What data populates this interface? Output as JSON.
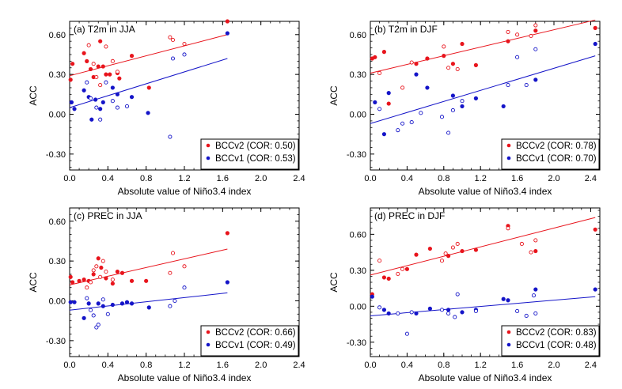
{
  "colors": {
    "bccv2": "#e8141c",
    "bccv1": "#1414c8"
  },
  "chart_data": [
    {
      "type": "scatter",
      "title": "(a) T2m in JJA",
      "xlabel": "Absolute value of Niño3.4 index",
      "ylabel": "ACC",
      "xlim": [
        0,
        2.4
      ],
      "ylim": [
        -0.42,
        0.7
      ],
      "xticks": [
        "0.0",
        "0.4",
        "0.8",
        "1.2",
        "1.6",
        "2.0",
        "2.4"
      ],
      "yticks": [
        "-0.30",
        "0.00",
        "0.30",
        "0.60"
      ],
      "grid": false,
      "legend_position": "bottom-right",
      "series": [
        {
          "name": "BCCv2 (COR: 0.50)",
          "color": "#e8141c",
          "fit": [
            [
              0,
              0.29
            ],
            [
              1.65,
              0.6
            ]
          ],
          "filled": [
            [
              0.01,
              0.26
            ],
            [
              0.03,
              0.38
            ],
            [
              0.15,
              0.46
            ],
            [
              0.18,
              0.4
            ],
            [
              0.22,
              0.34
            ],
            [
              0.25,
              0.28
            ],
            [
              0.3,
              0.36
            ],
            [
              0.32,
              0.55
            ],
            [
              0.35,
              0.36
            ],
            [
              0.38,
              0.3
            ],
            [
              0.42,
              0.3
            ],
            [
              0.5,
              0.31
            ],
            [
              0.52,
              0.27
            ],
            [
              0.65,
              0.44
            ],
            [
              0.83,
              0.2
            ],
            [
              1.65,
              0.7
            ]
          ],
          "hollow": [
            [
              0.2,
              0.52
            ],
            [
              0.25,
              0.38
            ],
            [
              0.28,
              0.28
            ],
            [
              0.32,
              0.22
            ],
            [
              0.38,
              0.51
            ],
            [
              0.45,
              0.4
            ],
            [
              0.5,
              0.32
            ],
            [
              1.05,
              0.58
            ],
            [
              1.08,
              0.56
            ],
            [
              1.2,
              0.53
            ]
          ]
        },
        {
          "name": "BCCv1 (COR: 0.53)",
          "color": "#1414c8",
          "fit": [
            [
              0,
              0.05
            ],
            [
              1.65,
              0.42
            ]
          ],
          "filled": [
            [
              0.02,
              0.09
            ],
            [
              0.05,
              0.04
            ],
            [
              0.15,
              0.18
            ],
            [
              0.2,
              0.13
            ],
            [
              0.23,
              -0.04
            ],
            [
              0.27,
              0.11
            ],
            [
              0.32,
              0.04
            ],
            [
              0.35,
              0.09
            ],
            [
              0.45,
              0.2
            ],
            [
              0.5,
              0.15
            ],
            [
              0.65,
              0.13
            ],
            [
              0.82,
              0.01
            ],
            [
              1.65,
              0.61
            ]
          ],
          "hollow": [
            [
              0.18,
              0.24
            ],
            [
              0.22,
              0.12
            ],
            [
              0.28,
              0.05
            ],
            [
              0.32,
              -0.04
            ],
            [
              0.38,
              0.24
            ],
            [
              0.45,
              0.1
            ],
            [
              0.5,
              0.05
            ],
            [
              0.6,
              0.06
            ],
            [
              1.05,
              -0.17
            ],
            [
              1.08,
              0.42
            ],
            [
              1.2,
              0.45
            ]
          ]
        }
      ]
    },
    {
      "type": "scatter",
      "title": "(b) T2m in DJF",
      "xlabel": "Absolute value of Niño3.4 index",
      "ylabel": "ACC",
      "xlim": [
        0,
        2.5
      ],
      "ylim": [
        -0.42,
        0.7
      ],
      "xticks": [
        "0.0",
        "0.4",
        "0.8",
        "1.2",
        "1.6",
        "2.0",
        "2.4"
      ],
      "yticks": [
        "-0.30",
        "0.00",
        "0.30",
        "0.60"
      ],
      "grid": false,
      "legend_position": "bottom-right",
      "series": [
        {
          "name": "BCCv2 (COR: 0.78)",
          "color": "#e8141c",
          "fit": [
            [
              0,
              0.31
            ],
            [
              2.45,
              0.71
            ]
          ],
          "filled": [
            [
              0.02,
              0.42
            ],
            [
              0.05,
              0.43
            ],
            [
              0.15,
              0.47
            ],
            [
              0.2,
              0.08
            ],
            [
              0.5,
              0.38
            ],
            [
              0.62,
              0.42
            ],
            [
              0.8,
              0.44
            ],
            [
              0.9,
              0.38
            ],
            [
              1.0,
              0.53
            ],
            [
              1.15,
              0.37
            ],
            [
              1.5,
              0.55
            ],
            [
              1.8,
              0.63
            ],
            [
              2.45,
              0.65
            ]
          ],
          "hollow": [
            [
              0.1,
              0.31
            ],
            [
              0.35,
              0.2
            ],
            [
              0.45,
              0.39
            ],
            [
              0.8,
              0.51
            ],
            [
              0.85,
              0.35
            ],
            [
              0.95,
              0.34
            ],
            [
              1.5,
              0.62
            ],
            [
              1.6,
              0.6
            ],
            [
              1.75,
              0.59
            ],
            [
              1.8,
              0.67
            ]
          ]
        },
        {
          "name": "BCCv1 (COR: 0.70)",
          "color": "#1414c8",
          "fit": [
            [
              0,
              -0.07
            ],
            [
              2.45,
              0.44
            ]
          ],
          "filled": [
            [
              0.05,
              0.09
            ],
            [
              0.15,
              -0.15
            ],
            [
              0.2,
              0.16
            ],
            [
              0.5,
              0.3
            ],
            [
              0.62,
              0.2
            ],
            [
              0.9,
              0.14
            ],
            [
              1.0,
              0.06
            ],
            [
              1.15,
              0.12
            ],
            [
              1.45,
              0.06
            ],
            [
              1.8,
              0.26
            ],
            [
              2.45,
              0.53
            ]
          ],
          "hollow": [
            [
              0.1,
              0.04
            ],
            [
              0.3,
              -0.12
            ],
            [
              0.35,
              -0.07
            ],
            [
              0.45,
              -0.06
            ],
            [
              0.55,
              0.01
            ],
            [
              0.78,
              -0.02
            ],
            [
              0.85,
              -0.14
            ],
            [
              0.9,
              0.03
            ],
            [
              1.0,
              0.1
            ],
            [
              1.5,
              0.22
            ],
            [
              1.6,
              0.43
            ],
            [
              1.7,
              0.22
            ],
            [
              1.8,
              0.49
            ]
          ]
        }
      ]
    },
    {
      "type": "scatter",
      "title": "(c) PREC in JJA",
      "xlabel": "Absolute value of Niño3.4 index",
      "ylabel": "ACC",
      "xlim": [
        0,
        2.4
      ],
      "ylim": [
        -0.42,
        0.7
      ],
      "xticks": [
        "0.0",
        "0.4",
        "0.8",
        "1.2",
        "1.6",
        "2.0",
        "2.4"
      ],
      "yticks": [
        "-0.30",
        "0.00",
        "0.30",
        "0.60"
      ],
      "grid": false,
      "legend_position": "bottom-right",
      "series": [
        {
          "name": "BCCv2 (COR: 0.66)",
          "color": "#e8141c",
          "fit": [
            [
              0,
              0.12
            ],
            [
              1.65,
              0.39
            ]
          ],
          "filled": [
            [
              0.01,
              0.18
            ],
            [
              0.03,
              0.14
            ],
            [
              0.1,
              0.15
            ],
            [
              0.15,
              0.16
            ],
            [
              0.2,
              0.15
            ],
            [
              0.25,
              0.2
            ],
            [
              0.3,
              0.32
            ],
            [
              0.33,
              0.25
            ],
            [
              0.38,
              0.17
            ],
            [
              0.45,
              0.13
            ],
            [
              0.5,
              0.22
            ],
            [
              0.55,
              0.21
            ],
            [
              0.65,
              0.15
            ],
            [
              0.8,
              0.15
            ],
            [
              1.65,
              0.51
            ]
          ],
          "hollow": [
            [
              0.18,
              0.1
            ],
            [
              0.22,
              0.14
            ],
            [
              0.25,
              0.23
            ],
            [
              0.28,
              0.26
            ],
            [
              0.32,
              0.18
            ],
            [
              0.35,
              0.3
            ],
            [
              0.38,
              0.22
            ],
            [
              0.45,
              0.16
            ],
            [
              1.05,
              0.21
            ],
            [
              1.08,
              0.36
            ],
            [
              1.2,
              0.26
            ]
          ]
        },
        {
          "name": "BCCv1 (COR: 0.49)",
          "color": "#1414c8",
          "fit": [
            [
              0,
              -0.07
            ],
            [
              1.65,
              0.06
            ]
          ],
          "filled": [
            [
              0.01,
              -0.01
            ],
            [
              0.05,
              -0.01
            ],
            [
              0.15,
              -0.13
            ],
            [
              0.2,
              -0.02
            ],
            [
              0.3,
              -0.02
            ],
            [
              0.35,
              -0.04
            ],
            [
              0.45,
              -0.03
            ],
            [
              0.55,
              -0.02
            ],
            [
              0.6,
              -0.01
            ],
            [
              0.65,
              -0.02
            ],
            [
              0.83,
              -0.05
            ],
            [
              1.65,
              0.14
            ]
          ],
          "hollow": [
            [
              0.18,
              0.02
            ],
            [
              0.22,
              -0.07
            ],
            [
              0.25,
              -0.11
            ],
            [
              0.28,
              -0.2
            ],
            [
              0.3,
              -0.18
            ],
            [
              0.35,
              0.01
            ],
            [
              0.4,
              -0.1
            ],
            [
              1.05,
              -0.04
            ],
            [
              1.1,
              0.0
            ],
            [
              1.2,
              0.1
            ]
          ]
        }
      ]
    },
    {
      "type": "scatter",
      "title": "(d) PREC in DJF",
      "xlabel": "Absolute value of Niño3.4 index",
      "ylabel": "ACC",
      "xlim": [
        0,
        2.5
      ],
      "ylim": [
        -0.42,
        0.82
      ],
      "xticks": [
        "0.0",
        "0.4",
        "0.8",
        "1.2",
        "1.6",
        "2.0",
        "2.4"
      ],
      "yticks": [
        "-0.30",
        "0.00",
        "0.30",
        "0.60"
      ],
      "grid": false,
      "legend_position": "bottom-right",
      "series": [
        {
          "name": "BCCv2 (COR: 0.83)",
          "color": "#e8141c",
          "fit": [
            [
              0,
              0.26
            ],
            [
              2.45,
              0.74
            ]
          ],
          "filled": [
            [
              0.02,
              0.1
            ],
            [
              0.15,
              0.24
            ],
            [
              0.2,
              0.23
            ],
            [
              0.4,
              0.31
            ],
            [
              0.5,
              0.43
            ],
            [
              0.65,
              0.48
            ],
            [
              0.85,
              0.42
            ],
            [
              1.0,
              0.46
            ],
            [
              1.15,
              0.47
            ],
            [
              1.5,
              0.67
            ],
            [
              1.8,
              0.46
            ],
            [
              2.45,
              0.64
            ]
          ],
          "hollow": [
            [
              0.1,
              0.38
            ],
            [
              0.3,
              0.27
            ],
            [
              0.35,
              0.31
            ],
            [
              0.78,
              0.38
            ],
            [
              0.82,
              0.44
            ],
            [
              0.9,
              0.49
            ],
            [
              0.95,
              0.52
            ],
            [
              1.5,
              0.65
            ],
            [
              1.65,
              0.52
            ],
            [
              1.75,
              0.45
            ],
            [
              1.8,
              0.55
            ]
          ]
        },
        {
          "name": "BCCv1 (COR: 0.48)",
          "color": "#1414c8",
          "fit": [
            [
              0,
              -0.08
            ],
            [
              2.45,
              0.08
            ]
          ],
          "filled": [
            [
              0.02,
              0.08
            ],
            [
              0.15,
              -0.03
            ],
            [
              0.2,
              -0.06
            ],
            [
              0.5,
              -0.06
            ],
            [
              0.65,
              -0.02
            ],
            [
              0.85,
              -0.03
            ],
            [
              1.0,
              -0.05
            ],
            [
              1.15,
              -0.03
            ],
            [
              1.45,
              0.06
            ],
            [
              1.5,
              0.05
            ],
            [
              1.8,
              0.14
            ],
            [
              2.45,
              0.14
            ]
          ],
          "hollow": [
            [
              0.1,
              -0.01
            ],
            [
              0.3,
              -0.06
            ],
            [
              0.4,
              -0.23
            ],
            [
              0.45,
              -0.05
            ],
            [
              0.78,
              -0.03
            ],
            [
              0.85,
              -0.06
            ],
            [
              0.92,
              -0.09
            ],
            [
              0.95,
              0.1
            ],
            [
              1.15,
              -0.04
            ],
            [
              1.6,
              -0.04
            ],
            [
              1.7,
              -0.08
            ],
            [
              1.78,
              0.09
            ],
            [
              1.8,
              -0.06
            ]
          ]
        }
      ]
    }
  ]
}
